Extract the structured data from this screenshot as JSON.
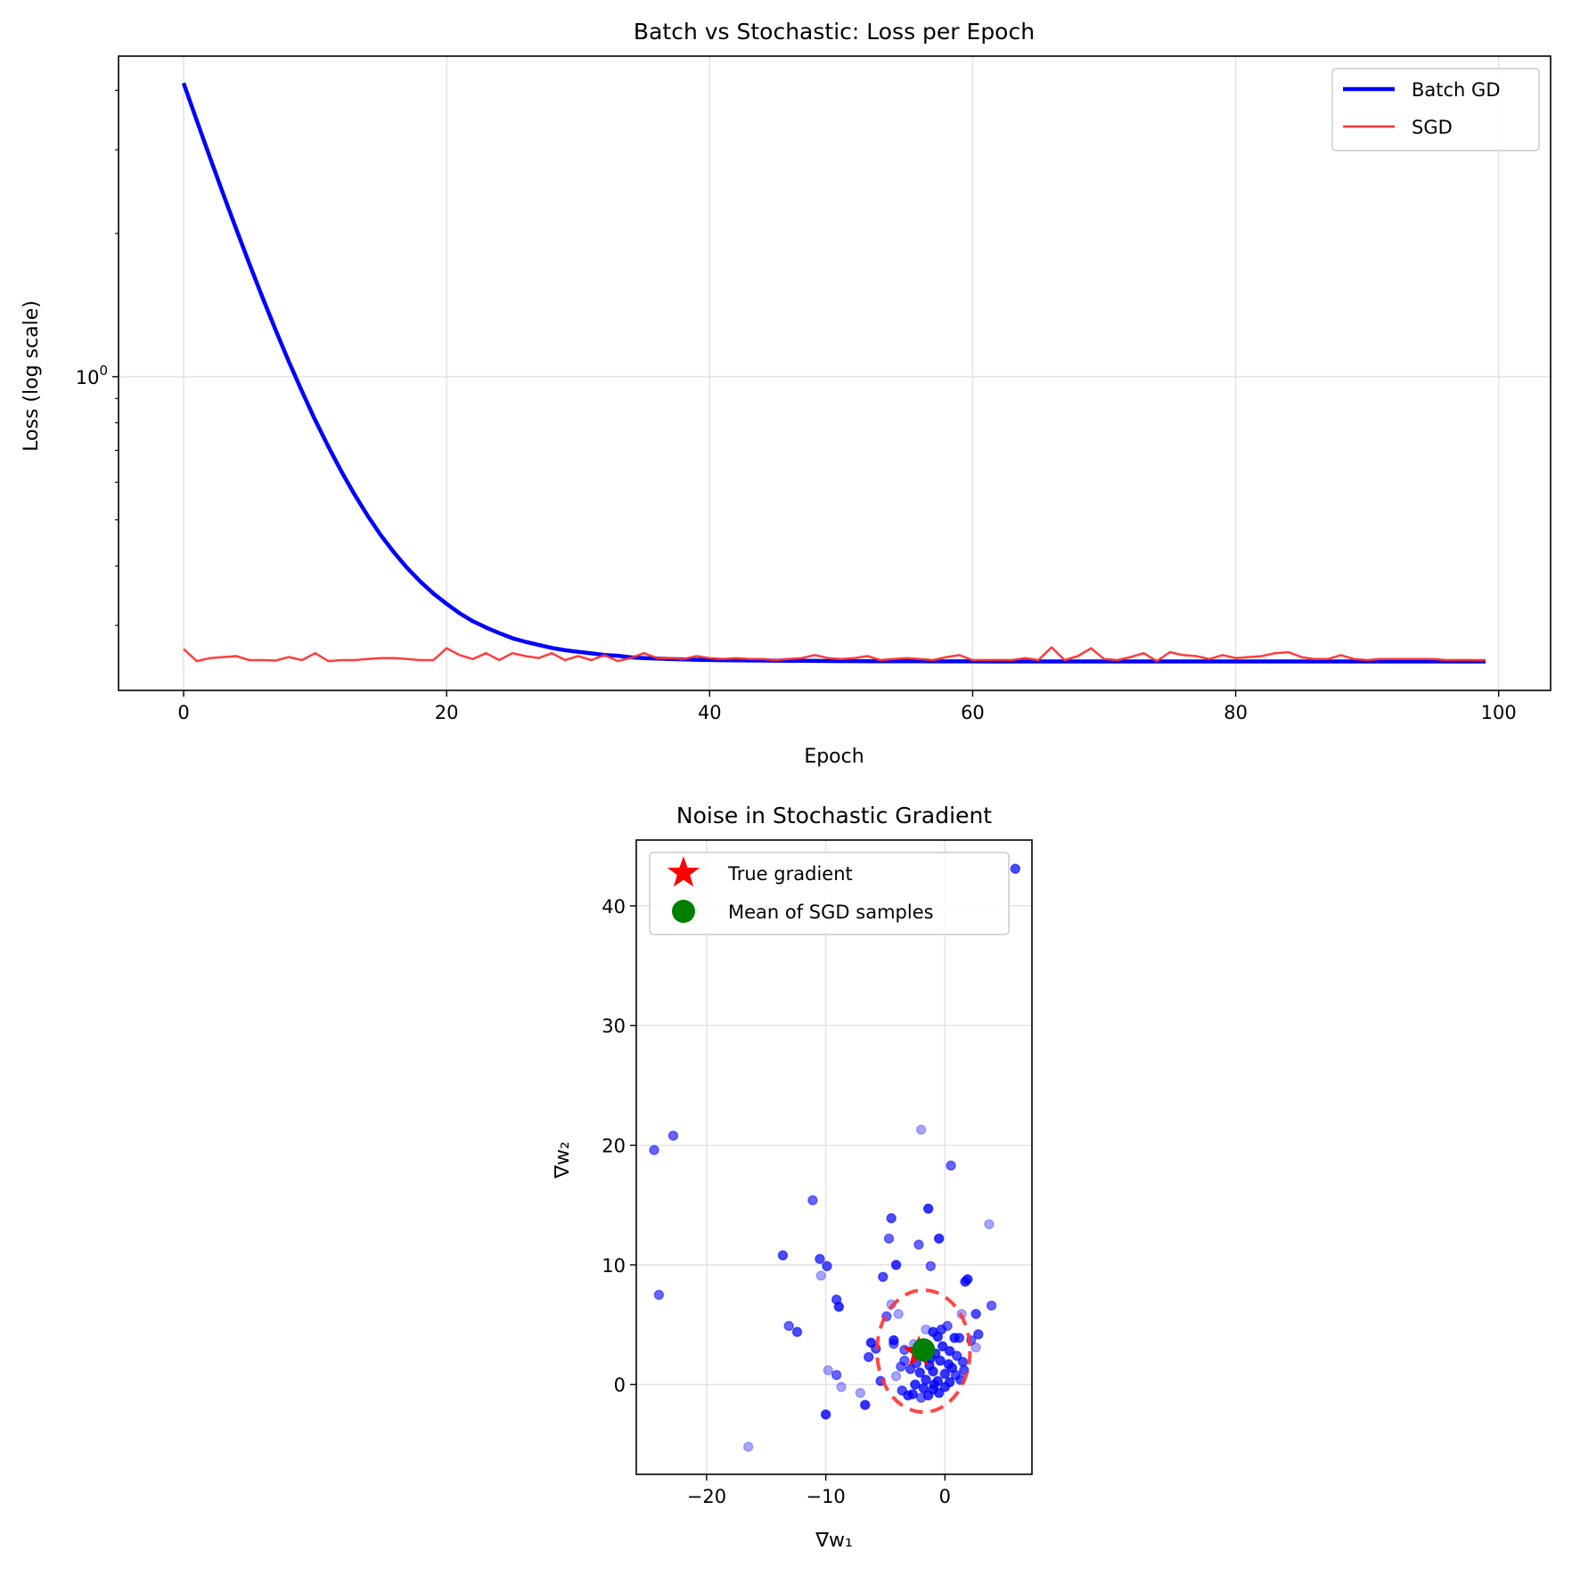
{
  "chart_data": [
    {
      "type": "line",
      "title": "Batch vs Stochastic: Loss per Epoch",
      "xlabel": "Epoch",
      "ylabel": "Loss (log scale)",
      "yscale": "log",
      "xlim": [
        -4.95,
        103.95
      ],
      "ylim": [
        0.219,
        4.72
      ],
      "xticks": [
        0,
        20,
        40,
        60,
        80,
        100
      ],
      "xtick_labels": [
        "0",
        "20",
        "40",
        "60",
        "80",
        "100"
      ],
      "yticks_major": [
        1
      ],
      "ytick_major_labels": [
        "10",
        "0"
      ],
      "yticks_minor": [
        0.3,
        0.4,
        0.5,
        0.6,
        0.7,
        0.8,
        0.9,
        2,
        3,
        4
      ],
      "grid": true,
      "legend_position": "upper right",
      "series": [
        {
          "name": "Batch GD",
          "color": "#0000ff",
          "values": [
            4.142,
            3.456,
            2.891,
            2.426,
            2.043,
            1.727,
            1.467,
            1.253,
            1.076,
            0.931,
            0.811,
            0.713,
            0.632,
            0.565,
            0.51,
            0.464,
            0.427,
            0.396,
            0.371,
            0.35,
            0.333,
            0.318,
            0.306,
            0.297,
            0.289,
            0.282,
            0.277,
            0.273,
            0.269,
            0.266,
            0.264,
            0.262,
            0.26,
            0.259,
            0.257,
            0.256,
            0.2555,
            0.255,
            0.2545,
            0.254,
            0.2537,
            0.2535,
            0.2533,
            0.2531,
            0.253,
            0.2529,
            0.2528,
            0.2527,
            0.2526,
            0.2525,
            0.2524,
            0.2524,
            0.2523,
            0.2523,
            0.2522,
            0.2522,
            0.2522,
            0.2521,
            0.2521,
            0.2521,
            0.2521,
            0.252,
            0.252,
            0.252,
            0.252,
            0.252,
            0.252,
            0.252,
            0.252,
            0.252,
            0.252,
            0.252,
            0.252,
            0.252,
            0.252,
            0.252,
            0.252,
            0.252,
            0.252,
            0.252,
            0.252,
            0.252,
            0.252,
            0.252,
            0.252,
            0.252,
            0.252,
            0.252,
            0.252,
            0.252,
            0.252,
            0.252,
            0.252,
            0.252,
            0.252,
            0.252,
            0.252,
            0.252,
            0.252,
            0.252
          ]
        },
        {
          "name": "SGD",
          "color": "#ff3333",
          "values": [
            0.2675,
            0.2524,
            0.2561,
            0.2573,
            0.2586,
            0.2536,
            0.2536,
            0.253,
            0.2573,
            0.2536,
            0.2623,
            0.2524,
            0.2536,
            0.2536,
            0.2549,
            0.2561,
            0.2561,
            0.2549,
            0.2536,
            0.2536,
            0.2685,
            0.2598,
            0.2549,
            0.2623,
            0.2536,
            0.2623,
            0.2586,
            0.2561,
            0.2623,
            0.2536,
            0.2586,
            0.2536,
            0.2598,
            0.2524,
            0.2561,
            0.2623,
            0.2561,
            0.2561,
            0.2549,
            0.2586,
            0.2561,
            0.2549,
            0.2561,
            0.2549,
            0.2549,
            0.2536,
            0.2549,
            0.2561,
            0.2598,
            0.2561,
            0.2549,
            0.2561,
            0.2586,
            0.2536,
            0.2549,
            0.2561,
            0.2549,
            0.2536,
            0.2573,
            0.2598,
            0.2536,
            0.2536,
            0.2536,
            0.2536,
            0.2561,
            0.2536,
            0.2697,
            0.2536,
            0.2586,
            0.2685,
            0.2549,
            0.2536,
            0.2573,
            0.2623,
            0.2524,
            0.2635,
            0.2598,
            0.2586,
            0.2549,
            0.2598,
            0.2561,
            0.2573,
            0.2586,
            0.2623,
            0.2635,
            0.2573,
            0.2549,
            0.2549,
            0.2598,
            0.2549,
            0.2536,
            0.2549,
            0.2549,
            0.2549,
            0.2549,
            0.2549,
            0.2536,
            0.2536,
            0.2536,
            0.2536
          ]
        }
      ]
    },
    {
      "type": "scatter",
      "title": "Noise in Stochastic Gradient",
      "xlabel": "∇w₁",
      "ylabel": "∇w₂",
      "xlim": [
        -25.9,
        7.3
      ],
      "ylim": [
        -7.5,
        45.5
      ],
      "xticks": [
        -20,
        -10,
        0
      ],
      "xtick_labels": [
        "−20",
        "−10",
        "0"
      ],
      "yticks": [
        0,
        10,
        20,
        30,
        40
      ],
      "ytick_labels": [
        "0",
        "10",
        "20",
        "30",
        "40"
      ],
      "grid": true,
      "legend_position": "upper left",
      "point_color": "#0000ff",
      "samples": [
        [
          5.9,
          43.1,
          0.7
        ],
        [
          -24.4,
          19.6,
          0.6
        ],
        [
          -22.8,
          20.8,
          0.6
        ],
        [
          -24.0,
          7.5,
          0.6
        ],
        [
          -2.0,
          21.3,
          0.35
        ],
        [
          0.5,
          18.3,
          0.6
        ],
        [
          -11.1,
          15.4,
          0.6
        ],
        [
          -1.4,
          14.7,
          0.8
        ],
        [
          -4.5,
          13.9,
          0.7
        ],
        [
          3.7,
          13.4,
          0.35
        ],
        [
          -4.7,
          12.2,
          0.6
        ],
        [
          -2.2,
          11.7,
          0.6
        ],
        [
          -0.5,
          12.2,
          0.8
        ],
        [
          -13.6,
          10.8,
          0.7
        ],
        [
          -10.5,
          10.5,
          0.7
        ],
        [
          -9.9,
          9.9,
          0.7
        ],
        [
          -4.1,
          10.0,
          0.8
        ],
        [
          -1.2,
          9.9,
          0.6
        ],
        [
          -10.4,
          9.1,
          0.35
        ],
        [
          -5.2,
          9.0,
          0.7
        ],
        [
          1.7,
          8.6,
          0.8
        ],
        [
          1.9,
          8.8,
          0.8
        ],
        [
          -9.1,
          7.1,
          0.7
        ],
        [
          -8.9,
          6.5,
          0.8
        ],
        [
          3.9,
          6.6,
          0.6
        ],
        [
          2.6,
          5.9,
          0.7
        ],
        [
          1.4,
          5.9,
          0.35
        ],
        [
          -4.5,
          6.7,
          0.35
        ],
        [
          -3.9,
          5.9,
          0.35
        ],
        [
          -4.9,
          5.7,
          0.6
        ],
        [
          -13.1,
          4.9,
          0.6
        ],
        [
          -12.4,
          4.4,
          0.7
        ],
        [
          2.8,
          4.2,
          0.7
        ],
        [
          2.2,
          3.7,
          0.6
        ],
        [
          2.6,
          3.1,
          0.35
        ],
        [
          -6.4,
          2.3,
          0.7
        ],
        [
          -5.8,
          3.0,
          0.7
        ],
        [
          -6.2,
          3.5,
          0.8
        ],
        [
          -4.3,
          3.7,
          0.8
        ],
        [
          -4.3,
          3.4,
          0.6
        ],
        [
          -9.8,
          1.2,
          0.35
        ],
        [
          -9.1,
          0.8,
          0.6
        ],
        [
          -8.7,
          -0.2,
          0.35
        ],
        [
          -7.1,
          -0.7,
          0.35
        ],
        [
          -5.4,
          0.3,
          0.7
        ],
        [
          -4.1,
          0.7,
          0.35
        ],
        [
          -6.7,
          -1.7,
          0.8
        ],
        [
          -10.0,
          -2.5,
          0.8
        ],
        [
          -16.5,
          -5.2,
          0.35
        ],
        [
          -3.1,
          -0.9,
          0.8
        ],
        [
          -0.3,
          4.6,
          0.7
        ],
        [
          0.2,
          4.9,
          0.6
        ],
        [
          -1.0,
          4.4,
          0.8
        ],
        [
          -0.6,
          4.0,
          0.8
        ],
        [
          0.8,
          3.9,
          0.8
        ],
        [
          1.2,
          3.9,
          0.7
        ],
        [
          -0.2,
          3.2,
          0.8
        ],
        [
          0.4,
          2.8,
          0.8
        ],
        [
          -0.8,
          2.6,
          0.8
        ],
        [
          1.0,
          2.4,
          0.7
        ],
        [
          1.5,
          1.9,
          0.7
        ],
        [
          -0.4,
          2.0,
          0.8
        ],
        [
          0.3,
          1.7,
          0.8
        ],
        [
          -1.3,
          1.6,
          0.8
        ],
        [
          -2.4,
          1.8,
          0.7
        ],
        [
          -2.9,
          1.3,
          0.7
        ],
        [
          -3.4,
          2.0,
          0.6
        ],
        [
          -3.7,
          1.5,
          0.6
        ],
        [
          -2.1,
          1.0,
          0.8
        ],
        [
          -1.0,
          1.1,
          0.8
        ],
        [
          0.0,
          0.9,
          0.8
        ],
        [
          0.9,
          0.8,
          0.7
        ],
        [
          1.6,
          1.2,
          0.7
        ],
        [
          -1.6,
          0.4,
          0.8
        ],
        [
          -0.6,
          0.3,
          0.8
        ],
        [
          0.4,
          0.2,
          0.8
        ],
        [
          1.3,
          0.4,
          0.7
        ],
        [
          -2.5,
          0.0,
          0.8
        ],
        [
          -1.8,
          -0.3,
          0.8
        ],
        [
          -1.0,
          -0.4,
          0.8
        ],
        [
          0.0,
          -0.2,
          0.8
        ],
        [
          -2.7,
          -0.8,
          0.8
        ],
        [
          -1.4,
          -0.9,
          0.8
        ],
        [
          -0.5,
          -0.7,
          0.8
        ],
        [
          -3.6,
          -0.5,
          0.7
        ],
        [
          -2.0,
          -1.1,
          0.6
        ],
        [
          -3.4,
          2.9,
          0.6
        ],
        [
          -2.6,
          3.4,
          0.35
        ],
        [
          -1.6,
          4.6,
          0.35
        ],
        [
          -0.9,
          0.0,
          0.8
        ],
        [
          0.6,
          1.4,
          0.8
        ],
        [
          -1.2,
          2.2,
          0.8
        ]
      ],
      "true_gradient": {
        "label": "True gradient",
        "x": -2.2,
        "y": 2.7,
        "color": "#ff0000",
        "marker": "star"
      },
      "sgd_mean": {
        "label": "Mean of SGD samples",
        "x": -1.8,
        "y": 2.9,
        "color": "#008000",
        "marker": "circle"
      },
      "covariance_ellipse": {
        "cx": -1.8,
        "cy": 2.8,
        "rx": 3.9,
        "ry": 5.1,
        "color": "#ff3333",
        "style": "dashed"
      }
    }
  ]
}
